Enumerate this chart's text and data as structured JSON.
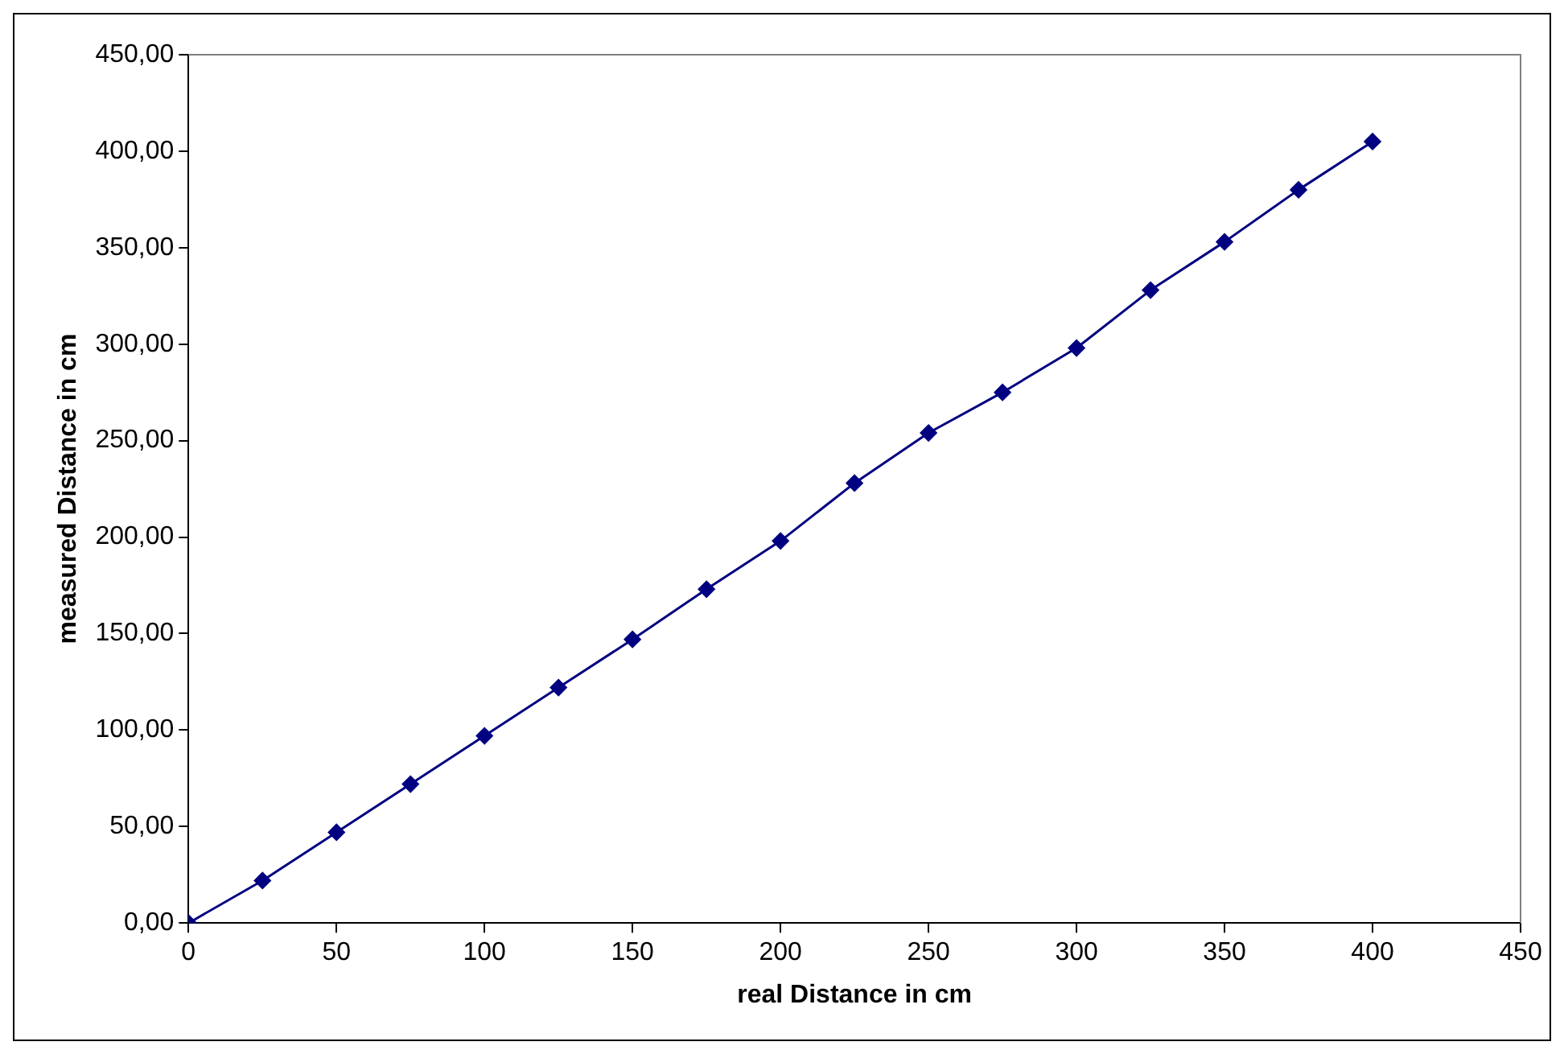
{
  "chart_data": {
    "type": "line",
    "xlabel": "real Distance in cm",
    "ylabel": "measured Distance in cm",
    "x": [
      0,
      25,
      50,
      75,
      100,
      125,
      150,
      175,
      200,
      225,
      250,
      275,
      300,
      325,
      350,
      375,
      400
    ],
    "series": [
      {
        "color": "#000080",
        "values": [
          0,
          22,
          47,
          72,
          97,
          122,
          147,
          173,
          198,
          228,
          254,
          275,
          298,
          328,
          353,
          380,
          405
        ]
      }
    ],
    "xlim": [
      0,
      450
    ],
    "xticks": [
      0,
      50,
      100,
      150,
      200,
      250,
      300,
      350,
      400,
      450
    ],
    "ylim": [
      0,
      450
    ],
    "yticks": [
      {
        "value": 0,
        "label": "0,00"
      },
      {
        "value": 50,
        "label": "50,00"
      },
      {
        "value": 100,
        "label": "100,00"
      },
      {
        "value": 150,
        "label": "150,00"
      },
      {
        "value": 200,
        "label": "200,00"
      },
      {
        "value": 250,
        "label": "250,00"
      },
      {
        "value": 300,
        "label": "300,00"
      },
      {
        "value": 350,
        "label": "350,00"
      },
      {
        "value": 400,
        "label": "400,00"
      },
      {
        "value": 450,
        "label": "450,00"
      }
    ],
    "grid": false,
    "legend": false,
    "marker": "diamond",
    "line_style": "solid"
  }
}
